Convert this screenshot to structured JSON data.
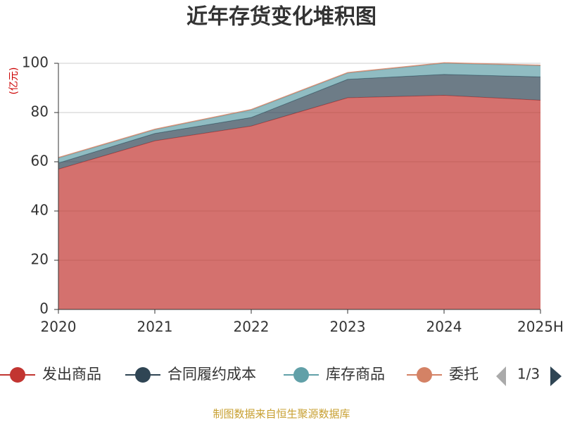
{
  "chart_data": {
    "type": "stacked_area",
    "title": "近年存货变化堆积图",
    "y_label": "(亿元)",
    "categories": [
      "2020",
      "2021",
      "2022",
      "2023",
      "2024",
      "2025H"
    ],
    "series": [
      {
        "name": "发出商品",
        "color": "#c23531",
        "values": [
          57,
          68.5,
          74.5,
          86,
          87,
          85
        ]
      },
      {
        "name": "合同履约成本",
        "color": "#2f4554",
        "values": [
          2.5,
          3,
          3.5,
          7.5,
          8.5,
          9.5
        ]
      },
      {
        "name": "库存商品",
        "color": "#61a0a8",
        "values": [
          2,
          1.5,
          3,
          2.5,
          4.5,
          4.5
        ]
      },
      {
        "name": "委托",
        "color": "#d48265",
        "values": [
          0.3,
          0.3,
          0.3,
          0.3,
          0.3,
          0.3
        ]
      }
    ],
    "ylim": [
      0,
      100
    ],
    "yticks": [
      0,
      20,
      40,
      60,
      80,
      100
    ],
    "grid": true,
    "legend_page": "1/3",
    "source": "制图数据来自恒生聚源数据库"
  }
}
